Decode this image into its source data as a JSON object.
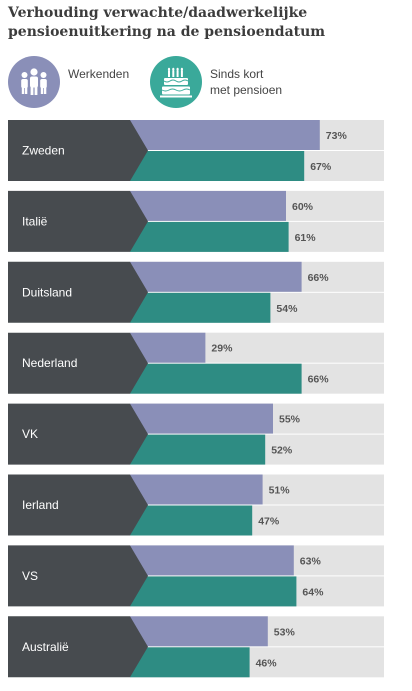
{
  "title_line1": "Verhouding verwachte/daadwerkelijke",
  "title_line2": "pensioenuitkering na de pensioendatum",
  "legend": [
    {
      "label_line1": "Werkenden",
      "label_line2": "",
      "color": "#8a8fb8",
      "icon": "people-icon"
    },
    {
      "label_line1": "Sinds kort",
      "label_line2": "met pensioen",
      "color": "#3aa99a",
      "icon": "cake-icon"
    }
  ],
  "chart_data": {
    "type": "bar",
    "orientation": "horizontal",
    "title": "Verhouding verwachte/daadwerkelijke pensioenuitkering na de pensioendatum",
    "categories": [
      "Zweden",
      "Italië",
      "Duitsland",
      "Nederland",
      "VK",
      "Ierland",
      "VS",
      "Australië"
    ],
    "series": [
      {
        "name": "Werkenden",
        "color": "#8a8fb8",
        "values": [
          73,
          60,
          66,
          29,
          55,
          51,
          63,
          53
        ],
        "labels": [
          "73%",
          "60%",
          "66%",
          "29%",
          "55%",
          "51%",
          "63%",
          "53%"
        ]
      },
      {
        "name": "Sinds kort met pensioen",
        "color": "#2e8c83",
        "values": [
          67,
          61,
          54,
          66,
          52,
          47,
          64,
          46
        ],
        "labels": [
          "67%",
          "61%",
          "54%",
          "66%",
          "52%",
          "47%",
          "64%",
          "46%"
        ]
      }
    ],
    "xlim": [
      0,
      100
    ],
    "background_track_color": "#e3e3e3",
    "category_box_color": "#474b4f"
  }
}
